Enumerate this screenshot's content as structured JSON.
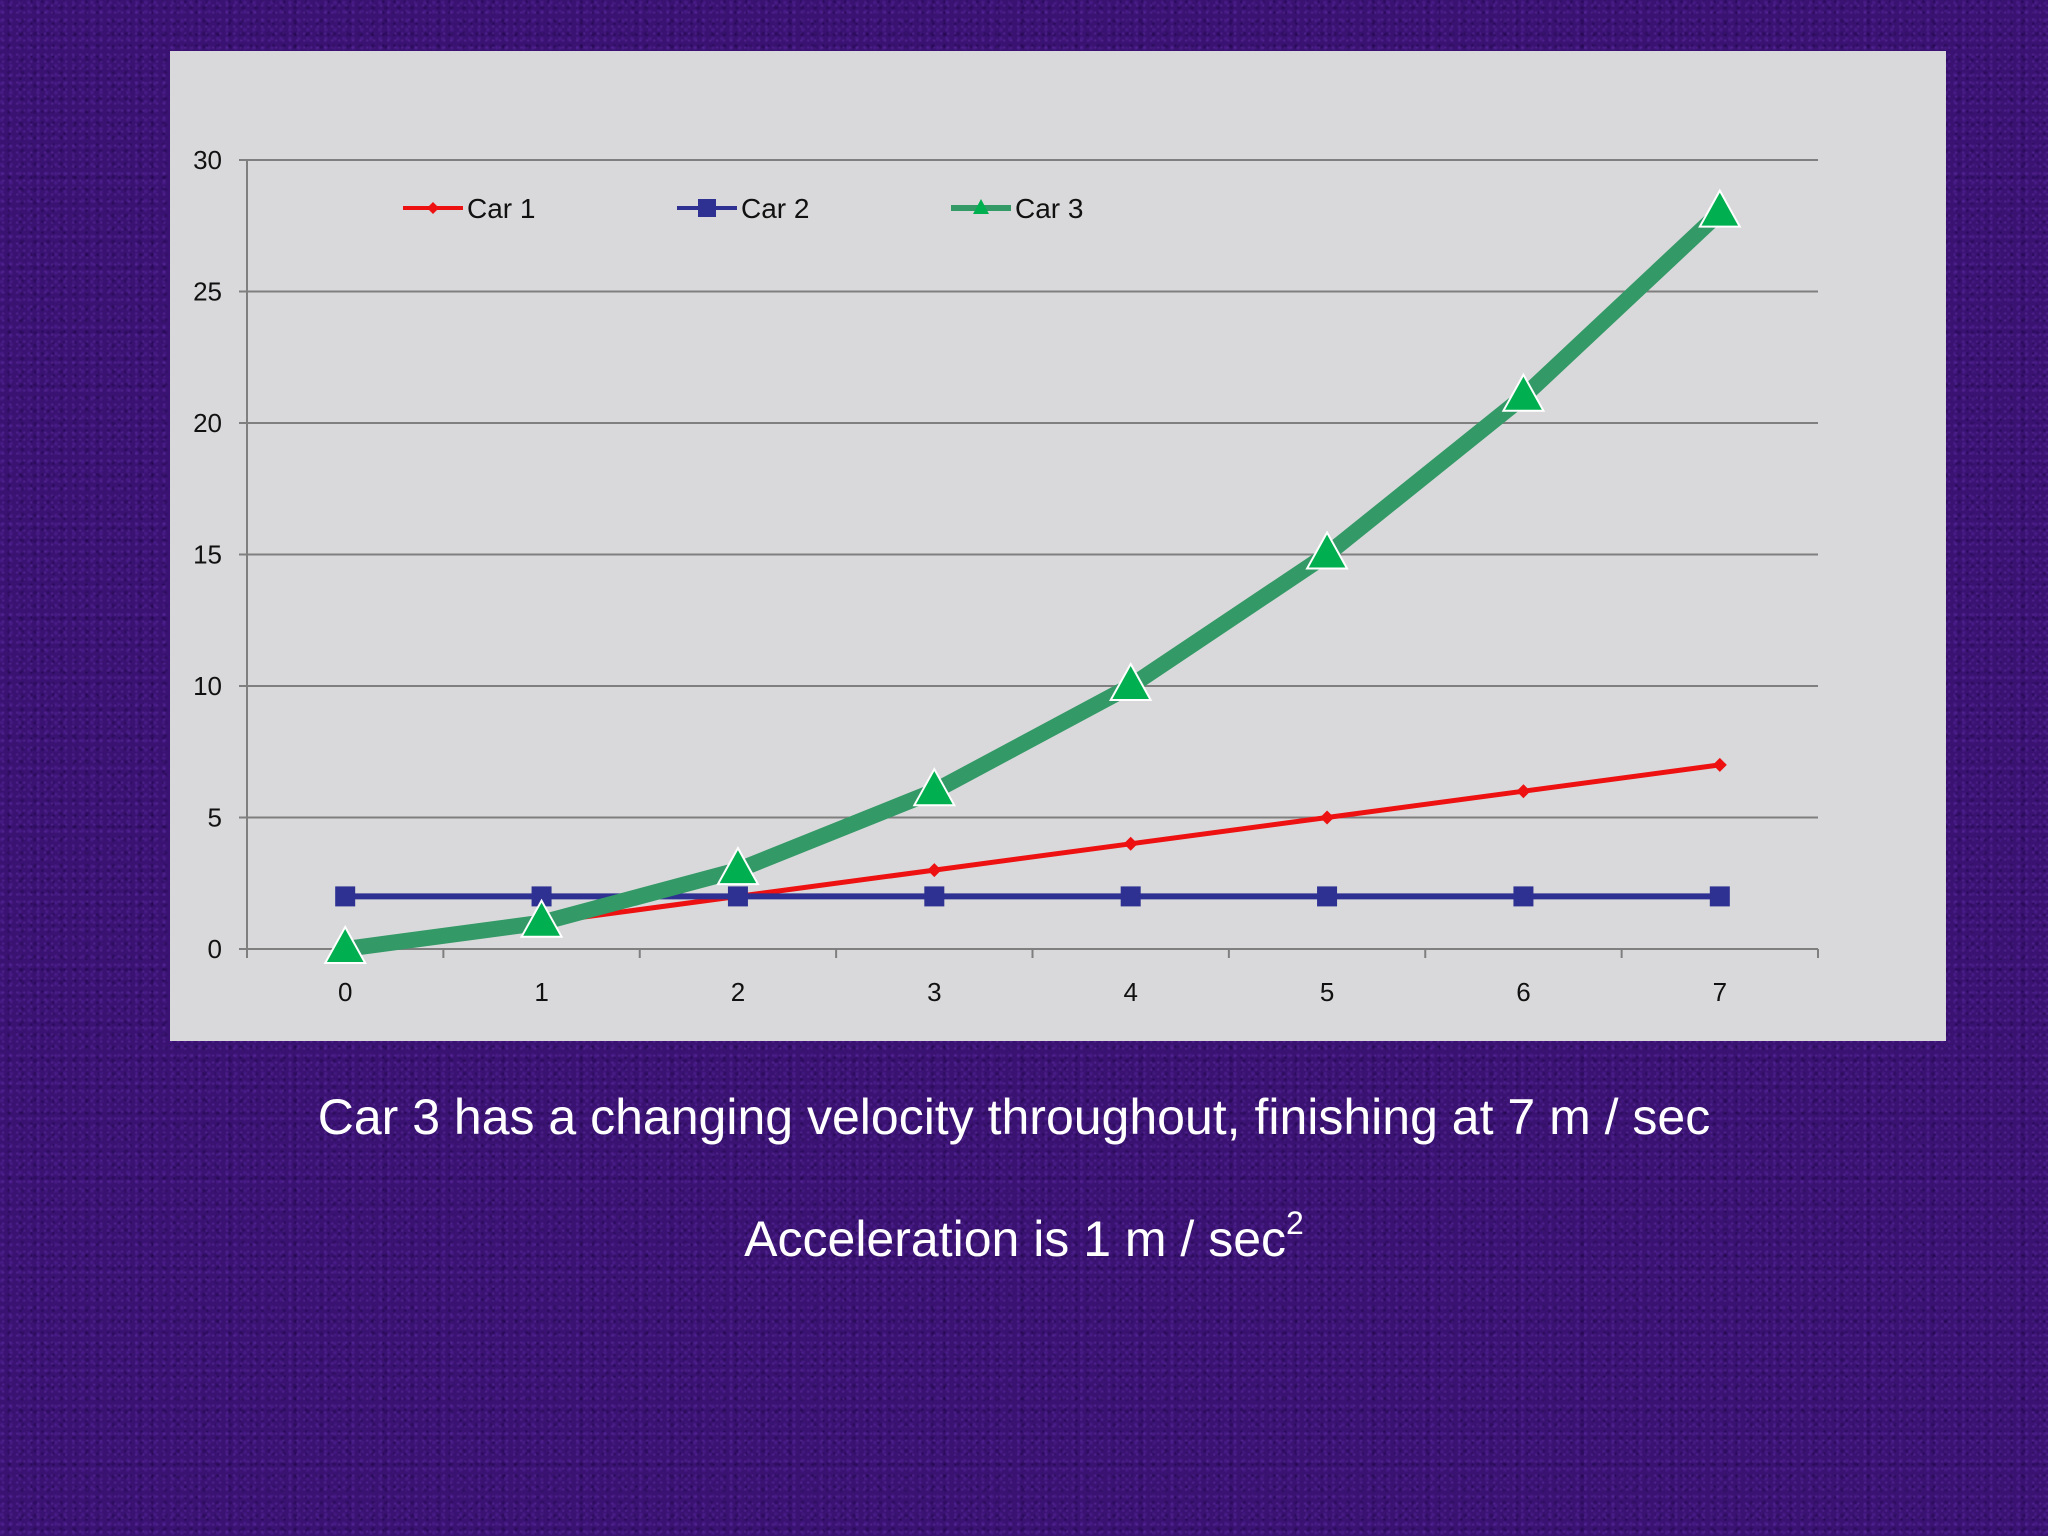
{
  "chart_data": {
    "type": "line",
    "x": [
      0,
      1,
      2,
      3,
      4,
      5,
      6,
      7
    ],
    "xlim": [
      -0.5,
      7.5
    ],
    "ylim": [
      0,
      30
    ],
    "yticks": [
      0,
      5,
      10,
      15,
      20,
      25,
      30
    ],
    "grid": true,
    "legend": "top-left",
    "series": [
      {
        "name": "Car 1",
        "color": "#ee1111",
        "marker": "diamond",
        "values": [
          0,
          1,
          2,
          3,
          4,
          5,
          6,
          7
        ]
      },
      {
        "name": "Car 2",
        "color": "#2e3192",
        "marker": "square",
        "values": [
          2,
          2,
          2,
          2,
          2,
          2,
          2,
          2
        ]
      },
      {
        "name": "Car 3",
        "color": "#339966",
        "marker_color": "#00b050",
        "marker": "triangle",
        "values": [
          0,
          1,
          3,
          6,
          10,
          15,
          21,
          28
        ]
      }
    ]
  },
  "captions": {
    "line1": "Car 3 has a changing velocity throughout, finishing at 7 m / sec",
    "line2_main": "Acceleration is 1 m / sec",
    "line2_sup": "2"
  }
}
